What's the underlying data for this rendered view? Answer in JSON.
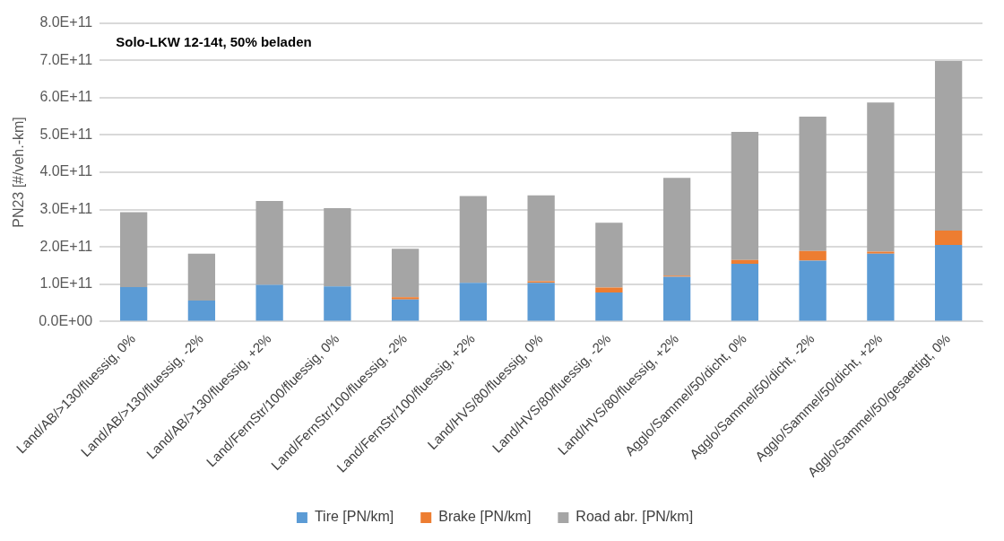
{
  "chart_data": {
    "type": "bar",
    "stacked": true,
    "title": "Solo-LKW 12-14t, 50% beladen",
    "ylabel": "PN23 [#/veh.-km]",
    "categories": [
      "Land/AB/>130/fluessig, 0%",
      "Land/AB/>130/fluessig, -2%",
      "Land/AB/>130/fluessig, +2%",
      "Land/FernStr/100/fluessig, 0%",
      "Land/FernStr/100/fluessig, -2%",
      "Land/FernStr/100/fluessig, +2%",
      "Land/HVS/80/fluessig, 0%",
      "Land/HVS/80/fluessig, -2%",
      "Land/HVS/80/fluessig, +2%",
      "Agglo/Sammel/50/dicht, 0%",
      "Agglo/Sammel/50/dicht, -2%",
      "Agglo/Sammel/50/dicht, +2%",
      "Agglo/Sammel/50/gesaettigt, 0%"
    ],
    "series": [
      {
        "name": "Tire [PN/km]",
        "color": "#5b9bd5",
        "values": [
          92000000000.0,
          56000000000.0,
          98000000000.0,
          94000000000.0,
          59000000000.0,
          104000000000.0,
          104000000000.0,
          78000000000.0,
          120000000000.0,
          155000000000.0,
          163000000000.0,
          182000000000.0,
          205000000000.0
        ]
      },
      {
        "name": "Brake [PN/km]",
        "color": "#ed7d31",
        "values": [
          0,
          0,
          0,
          0,
          6000000000.0,
          0,
          4000000000.0,
          13000000000.0,
          3000000000.0,
          10000000000.0,
          26000000000.0,
          5000000000.0,
          39000000000.0
        ]
      },
      {
        "name": "Road abr. [PN/km]",
        "color": "#a5a5a5",
        "values": [
          201000000000.0,
          126000000000.0,
          225000000000.0,
          210000000000.0,
          130000000000.0,
          232000000000.0,
          230000000000.0,
          174000000000.0,
          262000000000.0,
          343000000000.0,
          360000000000.0,
          400000000000.0,
          454000000000.0
        ]
      }
    ],
    "ylim": [
      0,
      800000000000.0
    ],
    "yticks": [
      {
        "value": 0,
        "label": "0.0E+00"
      },
      {
        "value": 100000000000.0,
        "label": "1.0E+11"
      },
      {
        "value": 200000000000.0,
        "label": "2.0E+11"
      },
      {
        "value": 300000000000.0,
        "label": "3.0E+11"
      },
      {
        "value": 400000000000.0,
        "label": "4.0E+11"
      },
      {
        "value": 500000000000.0,
        "label": "5.0E+11"
      },
      {
        "value": 600000000000.0,
        "label": "6.0E+11"
      },
      {
        "value": 700000000000.0,
        "label": "7.0E+11"
      },
      {
        "value": 800000000000.0,
        "label": "8.0E+11"
      }
    ],
    "grid": "y",
    "legend": "bottom"
  }
}
